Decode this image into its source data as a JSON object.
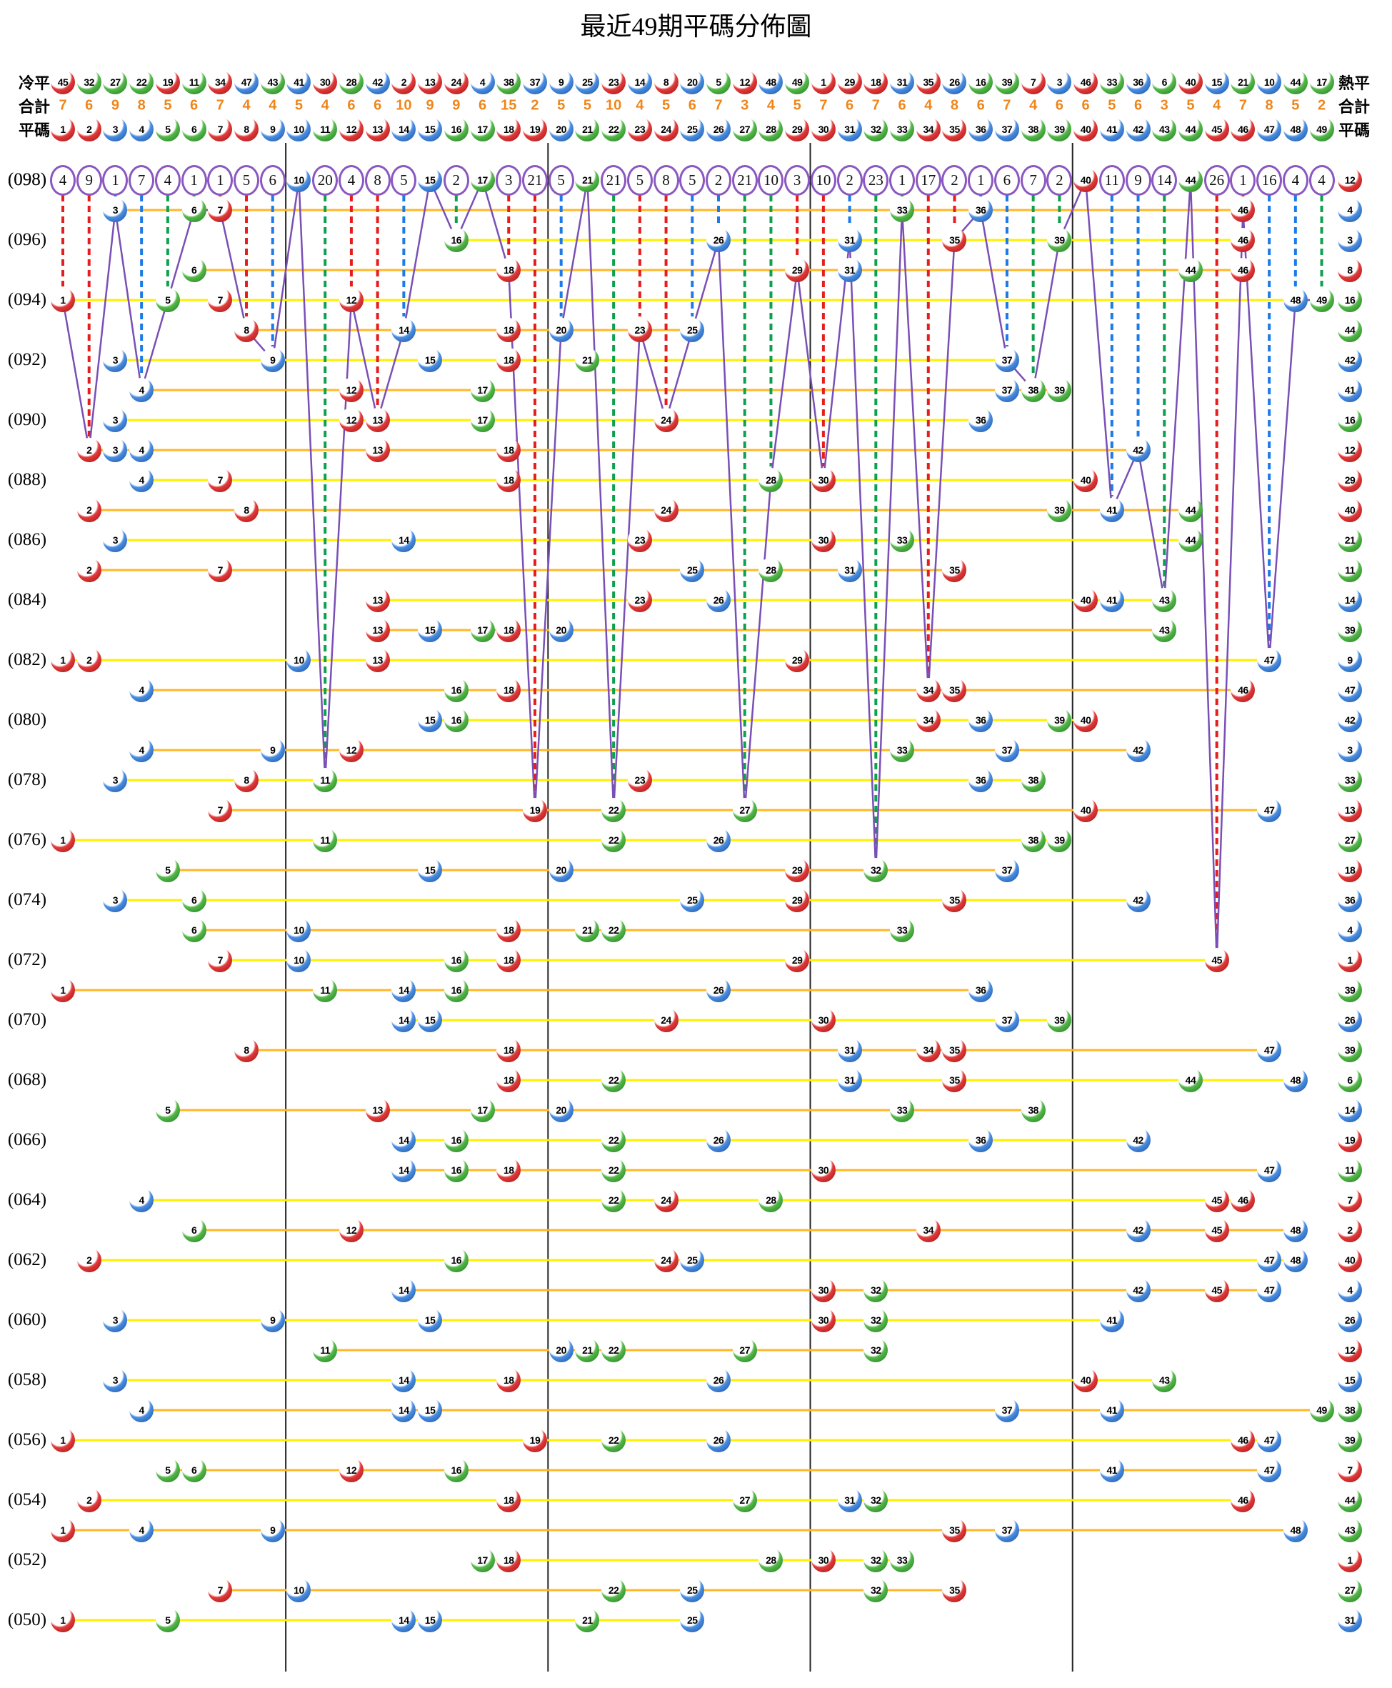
{
  "title": "最近49期平碼分佈圖",
  "header": {
    "left": {
      "cold": "冷平",
      "total": "合計",
      "ping": "平碼"
    },
    "right": {
      "hot": "熱平",
      "total": "合計",
      "ping": "平碼"
    }
  },
  "chart_data": {
    "type": "table",
    "title": "最近49期平碼分佈圖",
    "grid": {
      "periods_top_to_bottom": [
        98,
        50
      ],
      "columns": [
        1,
        49
      ],
      "row_labels_every": 2
    },
    "number_row": [
      1,
      2,
      3,
      4,
      5,
      6,
      7,
      8,
      9,
      10,
      11,
      12,
      13,
      14,
      15,
      16,
      17,
      18,
      19,
      20,
      21,
      22,
      23,
      24,
      25,
      26,
      27,
      28,
      29,
      30,
      31,
      32,
      33,
      34,
      35,
      36,
      37,
      38,
      39,
      40,
      41,
      42,
      43,
      44,
      45,
      46,
      47,
      48,
      49
    ],
    "cold_order": [
      45,
      32,
      27,
      22,
      19,
      11,
      34,
      47,
      43,
      41,
      30,
      28,
      42,
      2,
      13,
      24,
      4,
      38,
      37,
      9,
      25,
      23,
      14,
      8,
      20,
      5,
      12,
      48,
      49,
      1,
      29,
      18,
      31,
      35,
      26,
      16,
      39,
      7,
      3,
      46,
      33,
      36,
      6,
      40,
      15,
      21,
      10,
      44,
      17
    ],
    "totals": [
      7,
      6,
      9,
      8,
      5,
      6,
      7,
      4,
      4,
      5,
      4,
      6,
      6,
      10,
      9,
      9,
      6,
      15,
      2,
      5,
      5,
      10,
      4,
      5,
      6,
      7,
      3,
      4,
      5,
      7,
      6,
      7,
      6,
      4,
      8,
      6,
      7,
      4,
      6,
      6,
      5,
      6,
      3,
      5,
      4,
      7,
      8,
      5,
      2
    ],
    "gap_row": {
      "label": "(098)",
      "gaps": [
        4,
        9,
        1,
        7,
        4,
        1,
        1,
        5,
        6,
        0,
        20,
        4,
        8,
        5,
        0,
        2,
        0,
        3,
        21,
        5,
        0,
        21,
        5,
        8,
        5,
        2,
        21,
        10,
        3,
        10,
        2,
        23,
        1,
        17,
        2,
        1,
        6,
        7,
        2,
        0,
        11,
        9,
        14,
        0,
        26,
        1,
        16,
        4,
        4
      ]
    },
    "rows": [
      {
        "period": 98,
        "label": "(098)",
        "numbers": [
          10,
          15,
          17,
          21,
          40,
          44
        ],
        "special": 12
      },
      {
        "period": 97,
        "label": "",
        "numbers": [
          3,
          6,
          7,
          33,
          36,
          46
        ],
        "special": 4
      },
      {
        "period": 96,
        "label": "(096)",
        "numbers": [
          16,
          26,
          31,
          35,
          39,
          46
        ],
        "special": 3
      },
      {
        "period": 95,
        "label": "",
        "numbers": [
          6,
          18,
          29,
          31,
          44,
          46
        ],
        "special": 8
      },
      {
        "period": 94,
        "label": "(094)",
        "numbers": [
          1,
          5,
          7,
          12,
          48,
          49
        ],
        "special": 16
      },
      {
        "period": 93,
        "label": "",
        "numbers": [
          8,
          14,
          18,
          20,
          23,
          25
        ],
        "special": 44
      },
      {
        "period": 92,
        "label": "(092)",
        "numbers": [
          3,
          9,
          15,
          18,
          21,
          37
        ],
        "special": 42
      },
      {
        "period": 91,
        "label": "",
        "numbers": [
          4,
          12,
          17,
          37,
          38,
          39
        ],
        "special": 41
      },
      {
        "period": 90,
        "label": "(090)",
        "numbers": [
          3,
          12,
          13,
          17,
          24,
          36
        ],
        "special": 16
      },
      {
        "period": 89,
        "label": "",
        "numbers": [
          2,
          3,
          4,
          13,
          18,
          42
        ],
        "special": 12
      },
      {
        "period": 88,
        "label": "(088)",
        "numbers": [
          4,
          7,
          18,
          28,
          30,
          40
        ],
        "special": 29
      },
      {
        "period": 87,
        "label": "",
        "numbers": [
          2,
          8,
          24,
          39,
          41,
          44
        ],
        "special": 40
      },
      {
        "period": 86,
        "label": "(086)",
        "numbers": [
          3,
          14,
          23,
          30,
          33,
          44
        ],
        "special": 21
      },
      {
        "period": 85,
        "label": "",
        "numbers": [
          2,
          7,
          25,
          28,
          31,
          35
        ],
        "special": 11
      },
      {
        "period": 84,
        "label": "(084)",
        "numbers": [
          13,
          23,
          26,
          40,
          41,
          43
        ],
        "special": 14
      },
      {
        "period": 83,
        "label": "",
        "numbers": [
          13,
          15,
          17,
          18,
          20,
          43
        ],
        "special": 39
      },
      {
        "period": 82,
        "label": "(082)",
        "numbers": [
          1,
          2,
          10,
          13,
          29,
          47
        ],
        "special": 9
      },
      {
        "period": 81,
        "label": "",
        "numbers": [
          4,
          16,
          18,
          34,
          35,
          46
        ],
        "special": 47
      },
      {
        "period": 80,
        "label": "(080)",
        "numbers": [
          15,
          16,
          34,
          36,
          39,
          40
        ],
        "special": 42
      },
      {
        "period": 79,
        "label": "",
        "numbers": [
          4,
          9,
          12,
          33,
          37,
          42
        ],
        "special": 3
      },
      {
        "period": 78,
        "label": "(078)",
        "numbers": [
          3,
          8,
          11,
          23,
          36,
          38
        ],
        "special": 33
      },
      {
        "period": 77,
        "label": "",
        "numbers": [
          7,
          19,
          22,
          27,
          40,
          47
        ],
        "special": 13
      },
      {
        "period": 76,
        "label": "(076)",
        "numbers": [
          1,
          11,
          22,
          26,
          38,
          39
        ],
        "special": 27
      },
      {
        "period": 75,
        "label": "",
        "numbers": [
          5,
          15,
          20,
          29,
          32,
          37
        ],
        "special": 18
      },
      {
        "period": 74,
        "label": "(074)",
        "numbers": [
          3,
          6,
          25,
          29,
          35,
          42
        ],
        "special": 36
      },
      {
        "period": 73,
        "label": "",
        "numbers": [
          6,
          10,
          18,
          21,
          22,
          33
        ],
        "special": 4
      },
      {
        "period": 72,
        "label": "(072)",
        "numbers": [
          7,
          10,
          16,
          18,
          29,
          45
        ],
        "special": 1
      },
      {
        "period": 71,
        "label": "",
        "numbers": [
          1,
          11,
          14,
          16,
          26,
          36
        ],
        "special": 39
      },
      {
        "period": 70,
        "label": "(070)",
        "numbers": [
          14,
          15,
          24,
          30,
          37,
          39
        ],
        "special": 26
      },
      {
        "period": 69,
        "label": "",
        "numbers": [
          8,
          18,
          31,
          34,
          35,
          47
        ],
        "special": 39
      },
      {
        "period": 68,
        "label": "(068)",
        "numbers": [
          18,
          22,
          31,
          35,
          44,
          48
        ],
        "special": 6
      },
      {
        "period": 67,
        "label": "",
        "numbers": [
          5,
          13,
          17,
          20,
          33,
          38
        ],
        "special": 14
      },
      {
        "period": 66,
        "label": "(066)",
        "numbers": [
          14,
          16,
          22,
          26,
          36,
          42
        ],
        "special": 19
      },
      {
        "period": 65,
        "label": "",
        "numbers": [
          14,
          16,
          18,
          22,
          30,
          47
        ],
        "special": 11
      },
      {
        "period": 64,
        "label": "(064)",
        "numbers": [
          4,
          22,
          24,
          28,
          45,
          46
        ],
        "special": 7
      },
      {
        "period": 63,
        "label": "",
        "numbers": [
          6,
          12,
          34,
          42,
          45,
          48
        ],
        "special": 2
      },
      {
        "period": 62,
        "label": "(062)",
        "numbers": [
          2,
          16,
          24,
          25,
          47,
          48
        ],
        "special": 40
      },
      {
        "period": 61,
        "label": "",
        "numbers": [
          14,
          30,
          32,
          42,
          45,
          47
        ],
        "special": 4
      },
      {
        "period": 60,
        "label": "(060)",
        "numbers": [
          3,
          9,
          15,
          30,
          32,
          41
        ],
        "special": 26
      },
      {
        "period": 59,
        "label": "",
        "numbers": [
          11,
          20,
          21,
          22,
          27,
          32
        ],
        "special": 12
      },
      {
        "period": 58,
        "label": "(058)",
        "numbers": [
          3,
          14,
          18,
          26,
          40,
          43
        ],
        "special": 15
      },
      {
        "period": 57,
        "label": "",
        "numbers": [
          4,
          14,
          15,
          37,
          41,
          49
        ],
        "special": 38
      },
      {
        "period": 56,
        "label": "(056)",
        "numbers": [
          1,
          19,
          22,
          26,
          46,
          47
        ],
        "special": 39
      },
      {
        "period": 55,
        "label": "",
        "numbers": [
          5,
          6,
          12,
          16,
          41,
          47
        ],
        "special": 7
      },
      {
        "period": 54,
        "label": "(054)",
        "numbers": [
          2,
          18,
          27,
          31,
          32,
          46
        ],
        "special": 44
      },
      {
        "period": 53,
        "label": "",
        "numbers": [
          1,
          4,
          9,
          35,
          37,
          48
        ],
        "special": 43
      },
      {
        "period": 52,
        "label": "(052)",
        "numbers": [
          17,
          18,
          28,
          30,
          32,
          33
        ],
        "special": 1
      },
      {
        "period": 51,
        "label": "",
        "numbers": [
          7,
          10,
          22,
          25,
          32,
          35
        ],
        "special": 27
      },
      {
        "period": 50,
        "label": "(050)",
        "numbers": [
          1,
          5,
          14,
          15,
          21,
          25
        ],
        "special": 31
      }
    ],
    "color_groups": {
      "red": [
        1,
        2,
        7,
        8,
        12,
        13,
        18,
        19,
        23,
        24,
        29,
        30,
        34,
        35,
        40,
        45,
        46
      ],
      "blue": [
        3,
        4,
        9,
        10,
        14,
        15,
        20,
        25,
        26,
        31,
        36,
        37,
        41,
        42,
        47,
        48
      ],
      "green": [
        5,
        6,
        11,
        16,
        17,
        21,
        22,
        27,
        28,
        32,
        33,
        38,
        39,
        43,
        44,
        49
      ]
    },
    "colors": {
      "red_dash": "#e61d1d",
      "blue_dash": "#1d7ae6",
      "green_dash": "#0fa04f",
      "purple_line": "#7a4fb5",
      "circle_rim": "#8a58c0",
      "row_line_even": "#ffef00",
      "row_line_odd": "#ffb728",
      "totals_text": "#f08519",
      "separator": "#222222"
    },
    "layout_hints": {
      "group_separators_after": [
        9,
        19,
        29,
        39
      ],
      "special_column": "right",
      "grid": "off"
    }
  }
}
